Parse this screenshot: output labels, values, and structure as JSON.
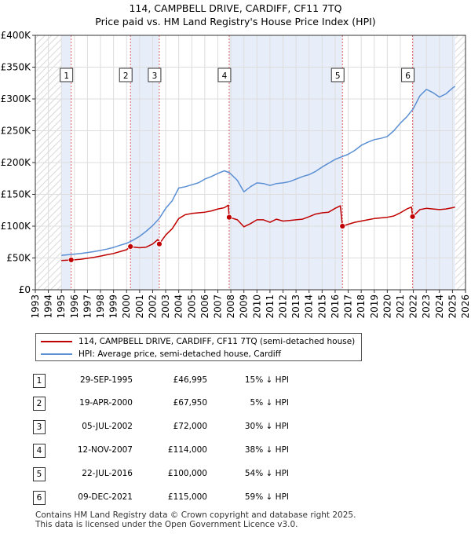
{
  "title_line1": "114, CAMPBELL DRIVE, CARDIFF, CF11 7TQ",
  "title_line2": "Price paid vs. HM Land Registry's House Price Index (HPI)",
  "colors": {
    "property": "#c00000",
    "hpi": "#5b8fd4",
    "shade": "#e8eef9",
    "hatch": "#cccccc",
    "vline": "#e06060"
  },
  "legend": {
    "property_label": "114, CAMPBELL DRIVE, CARDIFF, CF11 7TQ (semi-detached house)",
    "hpi_label": "HPI: Average price, semi-detached house, Cardiff"
  },
  "sales": [
    {
      "num": "1",
      "date": "29-SEP-1995",
      "price": "£46,995",
      "hpi": "15% ↓ HPI"
    },
    {
      "num": "2",
      "date": "19-APR-2000",
      "price": "£67,950",
      "hpi": "5% ↓ HPI"
    },
    {
      "num": "3",
      "date": "05-JUL-2002",
      "price": "£72,000",
      "hpi": "30% ↓ HPI"
    },
    {
      "num": "4",
      "date": "12-NOV-2007",
      "price": "£114,000",
      "hpi": "38% ↓ HPI"
    },
    {
      "num": "5",
      "date": "22-JUL-2016",
      "price": "£100,000",
      "hpi": "54% ↓ HPI"
    },
    {
      "num": "6",
      "date": "09-DEC-2021",
      "price": "£115,000",
      "hpi": "59% ↓ HPI"
    }
  ],
  "footer_line1": "Contains HM Land Registry data © Crown copyright and database right 2025.",
  "footer_line2": "This data is licensed under the Open Government Licence v3.0.",
  "chart_data": {
    "type": "line",
    "title": "114, CAMPBELL DRIVE, CARDIFF, CF11 7TQ — Price paid vs. HM Land Registry's House Price Index (HPI)",
    "xlabel": "",
    "ylabel": "",
    "xlim": [
      1993,
      2026
    ],
    "ylim": [
      0,
      400000
    ],
    "x_ticks": [
      1993,
      1994,
      1995,
      1996,
      1997,
      1998,
      1999,
      2000,
      2001,
      2002,
      2003,
      2004,
      2005,
      2006,
      2007,
      2008,
      2009,
      2010,
      2011,
      2012,
      2013,
      2014,
      2015,
      2016,
      2017,
      2018,
      2019,
      2020,
      2021,
      2022,
      2023,
      2024,
      2025,
      2026
    ],
    "y_ticks": [
      0,
      50000,
      100000,
      150000,
      200000,
      250000,
      300000,
      350000,
      400000
    ],
    "y_tick_labels": [
      "£0",
      "£50K",
      "£100K",
      "£150K",
      "£200K",
      "£250K",
      "£300K",
      "£350K",
      "£400K"
    ],
    "data_range": [
      1995.0,
      2025.2
    ],
    "grid": true,
    "shaded_ranges": [
      [
        1995.0,
        1995.75
      ],
      [
        2000.3,
        2002.5
      ],
      [
        2007.87,
        2016.56
      ],
      [
        2021.94,
        2025.2
      ]
    ],
    "series": [
      {
        "name": "HPI: Average price, semi-detached house, Cardiff",
        "x": [
          1995.0,
          1995.5,
          1996,
          1996.5,
          1997,
          1997.5,
          1998,
          1998.5,
          1999,
          1999.5,
          2000,
          2000.5,
          2001,
          2001.5,
          2002,
          2002.5,
          2003,
          2003.5,
          2004,
          2004.5,
          2005,
          2005.5,
          2006,
          2006.5,
          2007,
          2007.5,
          2007.9,
          2008.5,
          2009,
          2009.5,
          2010,
          2010.5,
          2011,
          2011.5,
          2012,
          2012.5,
          2013,
          2013.5,
          2014,
          2014.5,
          2015,
          2015.5,
          2016,
          2016.5,
          2017,
          2017.5,
          2018,
          2018.5,
          2019,
          2019.5,
          2020,
          2020.5,
          2021,
          2021.5,
          2022,
          2022.5,
          2023,
          2023.5,
          2024,
          2024.5,
          2025,
          2025.2
        ],
        "values": [
          54000,
          55000,
          56000,
          57000,
          58500,
          60000,
          62000,
          64000,
          66500,
          70000,
          73000,
          78000,
          84000,
          92000,
          101000,
          112000,
          128000,
          140000,
          160000,
          162000,
          165000,
          168000,
          174000,
          178000,
          183000,
          187000,
          184000,
          172000,
          154000,
          162000,
          168000,
          167000,
          164000,
          167000,
          168000,
          170000,
          174000,
          178000,
          181000,
          186000,
          193000,
          199000,
          205000,
          209000,
          213000,
          219000,
          227000,
          232000,
          236000,
          238000,
          241000,
          250000,
          262000,
          272000,
          285000,
          305000,
          315000,
          310000,
          303000,
          308000,
          317000,
          320000
        ]
      },
      {
        "name": "114, CAMPBELL DRIVE, CARDIFF, CF11 7TQ (semi-detached house)",
        "x": [
          1995.0,
          1995.5,
          1995.75,
          1996,
          1996.5,
          1997,
          1997.5,
          1998,
          1998.5,
          1999,
          1999.5,
          2000,
          2000.3,
          2000.6,
          2001,
          2001.5,
          2002,
          2002.4,
          2002.51,
          2003,
          2003.5,
          2004,
          2004.5,
          2005,
          2005.5,
          2006,
          2006.5,
          2007,
          2007.5,
          2007.8,
          2007.87,
          2008.5,
          2009,
          2009.5,
          2010,
          2010.5,
          2011,
          2011.5,
          2012,
          2012.5,
          2013,
          2013.5,
          2014,
          2014.5,
          2015,
          2015.5,
          2016,
          2016.4,
          2016.56,
          2017,
          2017.5,
          2018,
          2018.5,
          2019,
          2019.5,
          2020,
          2020.5,
          2021,
          2021.5,
          2021.85,
          2021.94,
          2022.5,
          2023,
          2023.5,
          2024,
          2024.5,
          2025,
          2025.2
        ],
        "values": [
          46000,
          46500,
          46995,
          47000,
          48000,
          49500,
          51000,
          53000,
          55000,
          57000,
          60000,
          63000,
          67950,
          67000,
          66000,
          67000,
          72000,
          79000,
          72000,
          86000,
          96000,
          112000,
          118000,
          120000,
          121000,
          122000,
          124000,
          127000,
          129000,
          133000,
          114000,
          110000,
          99000,
          104000,
          110000,
          110000,
          106000,
          111000,
          108000,
          109000,
          110000,
          111000,
          115000,
          119000,
          121000,
          122000,
          128000,
          132000,
          100000,
          103000,
          106000,
          108000,
          110000,
          112000,
          113000,
          114000,
          116000,
          121000,
          127000,
          130000,
          115000,
          126000,
          128000,
          127000,
          126000,
          127000,
          129000,
          130000
        ]
      }
    ],
    "sale_points": [
      {
        "label": "1",
        "x": 1995.75,
        "y": 46995
      },
      {
        "label": "2",
        "x": 2000.3,
        "y": 67950
      },
      {
        "label": "3",
        "x": 2002.51,
        "y": 72000
      },
      {
        "label": "4",
        "x": 2007.87,
        "y": 114000
      },
      {
        "label": "5",
        "x": 2016.56,
        "y": 100000
      },
      {
        "label": "6",
        "x": 2021.94,
        "y": 115000
      }
    ]
  }
}
